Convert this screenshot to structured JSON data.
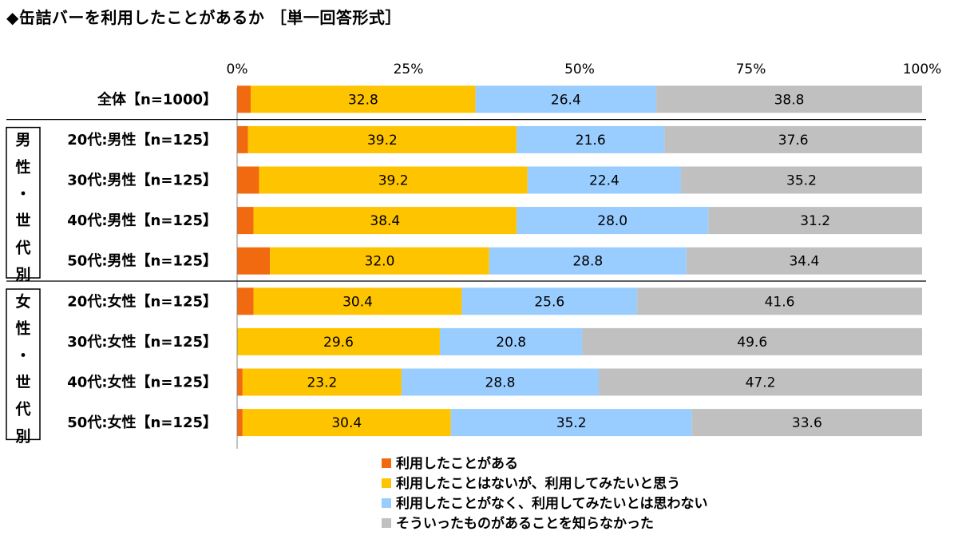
{
  "chart_data": {
    "type": "bar",
    "orientation": "horizontal",
    "stacked": "percent",
    "title": "◆缶詰バーを利用したことがあるか ［単一回答形式］",
    "xlim": [
      0,
      100
    ],
    "x_ticks": [
      "0%",
      "25%",
      "50%",
      "75%",
      "100%"
    ],
    "categories": [
      "全体【n=1000】",
      "20代:男性【n=125】",
      "30代:男性【n=125】",
      "40代:男性【n=125】",
      "50代:男性【n=125】",
      "20代:女性【n=125】",
      "30代:女性【n=125】",
      "40代:女性【n=125】",
      "50代:女性【n=125】"
    ],
    "groups": [
      {
        "label": "男性・世代別",
        "chars": [
          "男",
          "性",
          "・",
          "世",
          "代",
          "別"
        ],
        "start": 1,
        "end": 4
      },
      {
        "label": "女性・世代別",
        "chars": [
          "女",
          "性",
          "・",
          "世",
          "代",
          "別"
        ],
        "start": 5,
        "end": 8
      }
    ],
    "series": [
      {
        "name": "利用したことがある",
        "color": "#F26A0F",
        "values": [
          2.0,
          1.6,
          3.2,
          2.4,
          4.8,
          2.4,
          0.0,
          0.8,
          0.8
        ]
      },
      {
        "name": "利用したことはないが、利用してみたいと思う",
        "color": "#FFC400",
        "values": [
          32.8,
          39.2,
          39.2,
          38.4,
          32.0,
          30.4,
          29.6,
          23.2,
          30.4
        ]
      },
      {
        "name": "利用したことがなく、利用してみたいとは思わない",
        "color": "#99CCFF",
        "values": [
          26.4,
          21.6,
          22.4,
          28.0,
          28.8,
          25.6,
          20.8,
          28.8,
          35.2
        ]
      },
      {
        "name": "そういったものがあることを知らなかった",
        "color": "#C0C0C0",
        "values": [
          38.8,
          37.6,
          35.2,
          31.2,
          34.4,
          41.6,
          49.6,
          47.2,
          33.6
        ]
      }
    ],
    "legend_position": "bottom"
  }
}
